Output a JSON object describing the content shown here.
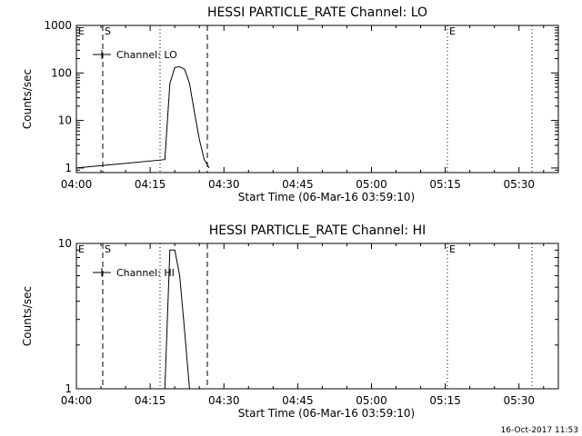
{
  "chart_data": [
    {
      "type": "line",
      "title": "HESSI PARTICLE_RATE Channel: LO",
      "xlabel": "Start Time (06-Mar-16 03:59:10)",
      "ylabel": "Counts/sec",
      "y_scale": "log",
      "ylim": [
        0.8,
        1000
      ],
      "xlim": [
        "04:00",
        "05:38"
      ],
      "x_ticks": [
        "04:00",
        "04:15",
        "04:30",
        "04:45",
        "05:00",
        "05:15",
        "05:30"
      ],
      "y_ticks": [
        "1",
        "10",
        "100",
        "1000"
      ],
      "legend": {
        "position": "top-left",
        "entries": [
          "Channel: LO"
        ]
      },
      "series": [
        {
          "name": "Channel: LO",
          "x": [
            "04:00",
            "04:18",
            "04:19",
            "04:20",
            "04:21",
            "04:22",
            "04:23",
            "04:24",
            "04:25",
            "04:26",
            "04:27"
          ],
          "y": [
            1,
            1.5,
            60,
            130,
            135,
            120,
            60,
            15,
            4,
            1.5,
            1
          ]
        }
      ],
      "annotations": [
        {
          "text": "E",
          "x": "04:00"
        },
        {
          "text": "S",
          "x": "04:06"
        },
        {
          "text": "E",
          "x": "05:15"
        }
      ],
      "grid": false
    },
    {
      "type": "line",
      "title": "HESSI PARTICLE_RATE Channel: HI",
      "xlabel": "Start Time (06-Mar-16 03:59:10)",
      "ylabel": "Counts/sec",
      "y_scale": "log",
      "ylim": [
        1,
        10
      ],
      "xlim": [
        "04:00",
        "05:38"
      ],
      "x_ticks": [
        "04:00",
        "04:15",
        "04:30",
        "04:45",
        "05:00",
        "05:15",
        "05:30"
      ],
      "y_ticks": [
        "1",
        "10"
      ],
      "legend": {
        "position": "top-left",
        "entries": [
          "Channel: HI"
        ]
      },
      "series": [
        {
          "name": "Channel: HI",
          "x": [
            "04:18",
            "04:19",
            "04:20",
            "04:21",
            "04:22",
            "04:23"
          ],
          "y": [
            1,
            9,
            9,
            6,
            2.5,
            1
          ]
        }
      ],
      "annotations": [
        {
          "text": "E",
          "x": "04:00"
        },
        {
          "text": "S",
          "x": "04:06"
        },
        {
          "text": "E",
          "x": "05:15"
        }
      ],
      "grid": false
    }
  ],
  "footer": {
    "timestamp": "16-Oct-2017 11:53"
  }
}
